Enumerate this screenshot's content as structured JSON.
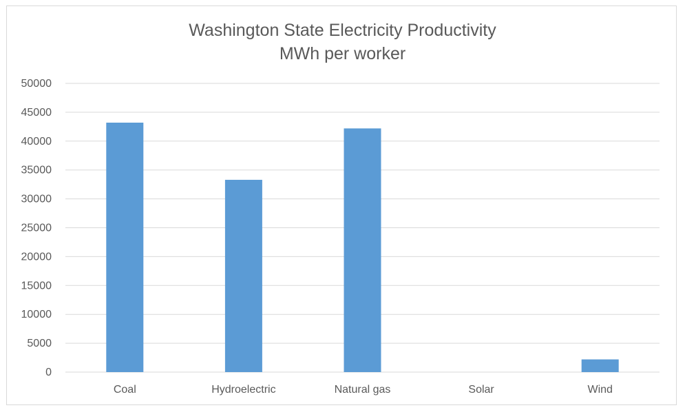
{
  "chart_data": {
    "type": "bar",
    "title": "Washington State Electricity Productivity",
    "subtitle": "MWh per worker",
    "categories": [
      "Coal",
      "Hydroelectric",
      "Natural gas",
      "Solar",
      "Wind"
    ],
    "values": [
      43200,
      33300,
      42200,
      0,
      2200
    ],
    "ylim": [
      0,
      50000
    ],
    "yticks": [
      "0",
      "5000",
      "10000",
      "15000",
      "20000",
      "25000",
      "30000",
      "35000",
      "40000",
      "45000",
      "50000"
    ],
    "grid": true,
    "legend": "none",
    "colors": {
      "bar": "#5b9bd5",
      "grid": "#d9d9d9",
      "text": "#595959"
    }
  }
}
